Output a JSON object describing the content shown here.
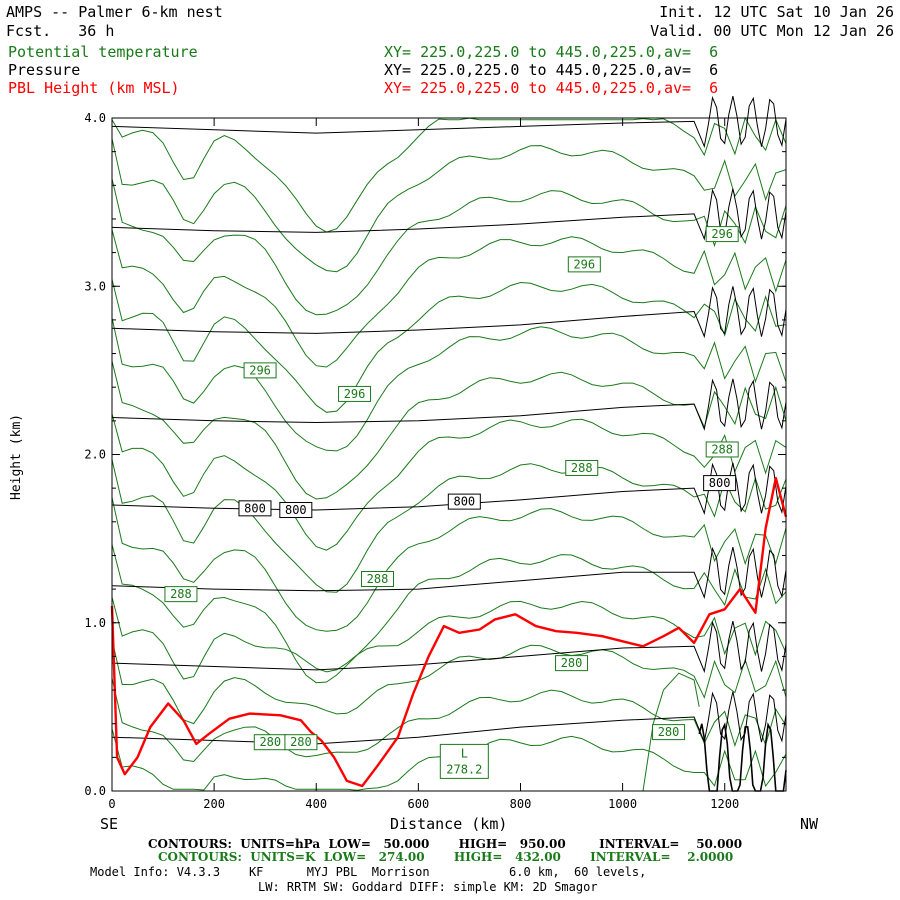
{
  "header": {
    "left_title": "AMPS -- Palmer 6-km nest",
    "left_fcst": "Fcst.   36 h",
    "right_init": "Init. 12 UTC Sat 10 Jan 26",
    "right_valid": "Valid. 00 UTC Mon 12 Jan 26",
    "field1_name": "Potential temperature",
    "field1_xy": "XY= 225.0,225.0 to 445.0,225.0,av=  6",
    "field2_name": "Pressure",
    "field2_xy": "XY= 225.0,225.0 to 445.0,225.0,av=  6",
    "field3_name": "PBL Height (km MSL)",
    "field3_xy": "XY= 225.0,225.0 to 445.0,225.0,av=  6"
  },
  "colors": {
    "theta": "#1a7a1a",
    "pressure": "#000000",
    "pbl": "#ff0000"
  },
  "chart_data": {
    "type": "line",
    "xlabel": "Distance (km)",
    "ylabel": "Height (km)",
    "x_end_labels": {
      "left": "SE",
      "right": "NW"
    },
    "xlim": [
      0,
      1320
    ],
    "ylim": [
      0,
      4.0
    ],
    "x_ticks": [
      0,
      200,
      400,
      600,
      800,
      1000,
      1200
    ],
    "x_tick_labels": [
      "0",
      "200",
      "400",
      "600",
      "800",
      "1000",
      "1200"
    ],
    "y_ticks": [
      0,
      1,
      2,
      3,
      4
    ],
    "y_tick_labels": [
      "0.0",
      "1.0",
      "2.0",
      "3.0",
      "4.0"
    ],
    "pressure_contours": {
      "units": "hPa",
      "interval": 50,
      "low": 50,
      "high": 950,
      "labels": [
        {
          "text": "800",
          "x": 280,
          "y": 1.68
        },
        {
          "text": "800",
          "x": 360,
          "y": 1.67
        },
        {
          "text": "800",
          "x": 690,
          "y": 1.72
        },
        {
          "text": "800",
          "x": 1190,
          "y": 1.83
        }
      ],
      "lines": [
        [
          [
            0,
            3.95
          ],
          [
            200,
            3.93
          ],
          [
            400,
            3.91
          ],
          [
            600,
            3.93
          ],
          [
            800,
            3.95
          ],
          [
            1000,
            3.97
          ],
          [
            1140,
            3.98
          ],
          [
            1320,
            4.0
          ]
        ],
        [
          [
            0,
            3.35
          ],
          [
            200,
            3.33
          ],
          [
            400,
            3.32
          ],
          [
            600,
            3.34
          ],
          [
            800,
            3.37
          ],
          [
            1000,
            3.41
          ],
          [
            1140,
            3.43
          ],
          [
            1320,
            3.48
          ]
        ],
        [
          [
            0,
            2.75
          ],
          [
            200,
            2.73
          ],
          [
            400,
            2.72
          ],
          [
            600,
            2.74
          ],
          [
            800,
            2.77
          ],
          [
            1000,
            2.82
          ],
          [
            1140,
            2.85
          ],
          [
            1320,
            2.95
          ]
        ],
        [
          [
            0,
            2.22
          ],
          [
            200,
            2.2
          ],
          [
            400,
            2.19
          ],
          [
            600,
            2.2
          ],
          [
            800,
            2.23
          ],
          [
            1000,
            2.28
          ],
          [
            1140,
            2.3
          ],
          [
            1320,
            2.4
          ]
        ],
        [
          [
            0,
            1.7
          ],
          [
            200,
            1.68
          ],
          [
            400,
            1.67
          ],
          [
            600,
            1.69
          ],
          [
            800,
            1.73
          ],
          [
            1000,
            1.78
          ],
          [
            1140,
            1.8
          ],
          [
            1320,
            2.0
          ]
        ],
        [
          [
            0,
            1.22
          ],
          [
            200,
            1.2
          ],
          [
            400,
            1.19
          ],
          [
            600,
            1.2
          ],
          [
            800,
            1.25
          ],
          [
            1000,
            1.3
          ],
          [
            1140,
            1.3
          ],
          [
            1320,
            1.45
          ]
        ],
        [
          [
            0,
            0.76
          ],
          [
            200,
            0.74
          ],
          [
            400,
            0.72
          ],
          [
            600,
            0.75
          ],
          [
            800,
            0.8
          ],
          [
            1000,
            0.85
          ],
          [
            1140,
            0.86
          ],
          [
            1320,
            0.9
          ]
        ],
        [
          [
            0,
            0.32
          ],
          [
            200,
            0.3
          ],
          [
            400,
            0.28
          ],
          [
            600,
            0.32
          ],
          [
            800,
            0.38
          ],
          [
            1000,
            0.42
          ],
          [
            1140,
            0.44
          ],
          [
            1320,
            0.5
          ]
        ]
      ]
    },
    "theta_contours": {
      "units": "K",
      "interval": 2.0,
      "low": 274.0,
      "high": 432.0,
      "labels": [
        {
          "text": "296",
          "x": 290,
          "y": 2.5
        },
        {
          "text": "296",
          "x": 475,
          "y": 2.36
        },
        {
          "text": "296",
          "x": 925,
          "y": 3.13
        },
        {
          "text": "296",
          "x": 1195,
          "y": 3.31
        },
        {
          "text": "288",
          "x": 135,
          "y": 1.17
        },
        {
          "text": "288",
          "x": 520,
          "y": 1.26
        },
        {
          "text": "288",
          "x": 920,
          "y": 1.92
        },
        {
          "text": "288",
          "x": 1195,
          "y": 2.03
        },
        {
          "text": "280",
          "x": 310,
          "y": 0.29
        },
        {
          "text": "280",
          "x": 370,
          "y": 0.29
        },
        {
          "text": "280",
          "x": 900,
          "y": 0.76
        },
        {
          "text": "280",
          "x": 1090,
          "y": 0.35
        }
      ],
      "low_marker": {
        "letter": "L",
        "value": "278.2",
        "x": 690,
        "y": 0.17
      }
    },
    "series": [
      {
        "name": "PBL Height (km MSL)",
        "points": [
          [
            0,
            1.1
          ],
          [
            10,
            0.2
          ],
          [
            25,
            0.1
          ],
          [
            50,
            0.2
          ],
          [
            75,
            0.38
          ],
          [
            110,
            0.52
          ],
          [
            140,
            0.42
          ],
          [
            165,
            0.28
          ],
          [
            190,
            0.34
          ],
          [
            230,
            0.43
          ],
          [
            270,
            0.46
          ],
          [
            330,
            0.45
          ],
          [
            370,
            0.42
          ],
          [
            390,
            0.35
          ],
          [
            410,
            0.3
          ],
          [
            435,
            0.2
          ],
          [
            460,
            0.06
          ],
          [
            490,
            0.03
          ],
          [
            520,
            0.15
          ],
          [
            560,
            0.32
          ],
          [
            590,
            0.58
          ],
          [
            620,
            0.8
          ],
          [
            650,
            0.98
          ],
          [
            680,
            0.94
          ],
          [
            720,
            0.96
          ],
          [
            750,
            1.02
          ],
          [
            790,
            1.05
          ],
          [
            830,
            0.98
          ],
          [
            870,
            0.95
          ],
          [
            910,
            0.94
          ],
          [
            960,
            0.92
          ],
          [
            1000,
            0.89
          ],
          [
            1040,
            0.86
          ],
          [
            1080,
            0.92
          ],
          [
            1110,
            0.97
          ],
          [
            1140,
            0.88
          ],
          [
            1170,
            1.05
          ],
          [
            1200,
            1.08
          ],
          [
            1230,
            1.2
          ],
          [
            1260,
            1.06
          ],
          [
            1280,
            1.56
          ],
          [
            1300,
            1.86
          ],
          [
            1320,
            1.63
          ]
        ]
      }
    ]
  },
  "footer": {
    "line1": "CONTOURS:  UNITS=hPa  LOW=   50.000       HIGH=   950.00        INTERVAL=    50.000",
    "line2": "CONTOURS:  UNITS=K  LOW=   274.00       HIGH=   432.00       INTERVAL=    2.0000",
    "line3": "Model Info: V4.3.3    KF      MYJ PBL  Morrison           6.0 km,  60 levels,",
    "line4": "LW: RRTM SW: Goddard DIFF: simple KM: 2D Smagor"
  }
}
